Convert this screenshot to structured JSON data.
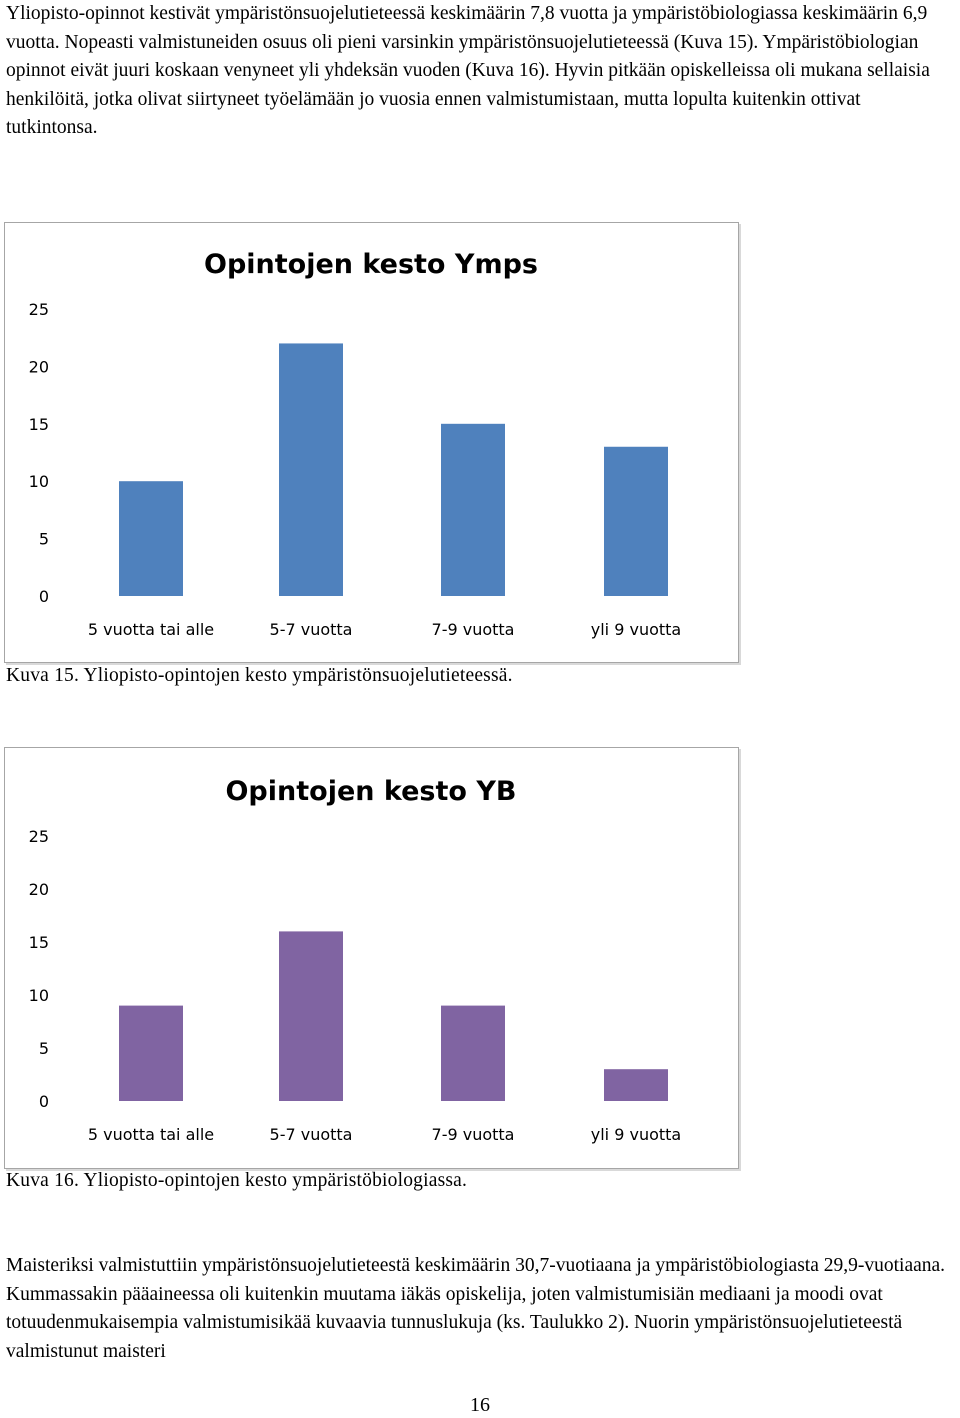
{
  "body": {
    "paragraph_1": "Yliopisto-opinnot kestivät ympäristönsuojelutieteessä keskimäärin 7,8 vuotta ja ympäristöbiologiassa keskimäärin 6,9 vuotta. Nopeasti valmistuneiden osuus oli pieni varsinkin ympäristönsuojelutieteessä (Kuva 15). Ympäristöbiologian opinnot eivät juuri koskaan venyneet yli yhdeksän vuoden (Kuva 16). Hyvin pitkään opiskelleissa oli mukana sellaisia henkilöitä, jotka olivat siirtyneet työelämään jo vuosia ennen valmistumistaan, mutta lopulta kuitenkin ottivat tutkintonsa.",
    "caption_1": "Kuva 15. Yliopisto-opintojen kesto ympäristönsuojelutieteessä.",
    "caption_2": "Kuva 16. Yliopisto-opintojen kesto ympäristöbiologiassa.",
    "paragraph_2": "Maisteriksi valmistuttiin ympäristönsuojelutieteestä keskimäärin 30,7-vuotiaana ja ympäristöbiologiasta 29,9-vuotiaana. Kummassakin pääaineessa oli kuitenkin muutama iäkäs opiskelija, joten valmistumisiän mediaani ja moodi ovat totuudenmukaisempia valmistumisikää kuvaavia tunnuslukuja (ks. Taulukko 2). Nuorin ympäristönsuojelutieteestä valmistunut maisteri",
    "page_number": "16"
  },
  "chart_data": [
    {
      "type": "bar",
      "title": "Opintojen kesto Ymps",
      "categories": [
        "5 vuotta tai alle",
        "5-7 vuotta",
        "7-9 vuotta",
        "yli 9 vuotta"
      ],
      "values": [
        10,
        22,
        15,
        13
      ],
      "ylim": [
        0,
        25
      ],
      "yticks": [
        "0",
        "5",
        "10",
        "15",
        "20",
        "25"
      ],
      "color": "#4f81bd",
      "grid": false,
      "legend": "none"
    },
    {
      "type": "bar",
      "title": "Opintojen kesto YB",
      "categories": [
        "5 vuotta tai alle",
        "5-7 vuotta",
        "7-9 vuotta",
        "yli 9 vuotta"
      ],
      "values": [
        9,
        16,
        9,
        3
      ],
      "ylim": [
        0,
        25
      ],
      "yticks": [
        "0",
        "5",
        "10",
        "15",
        "20",
        "25"
      ],
      "color": "#8064a2",
      "grid": false,
      "legend": "none"
    }
  ]
}
